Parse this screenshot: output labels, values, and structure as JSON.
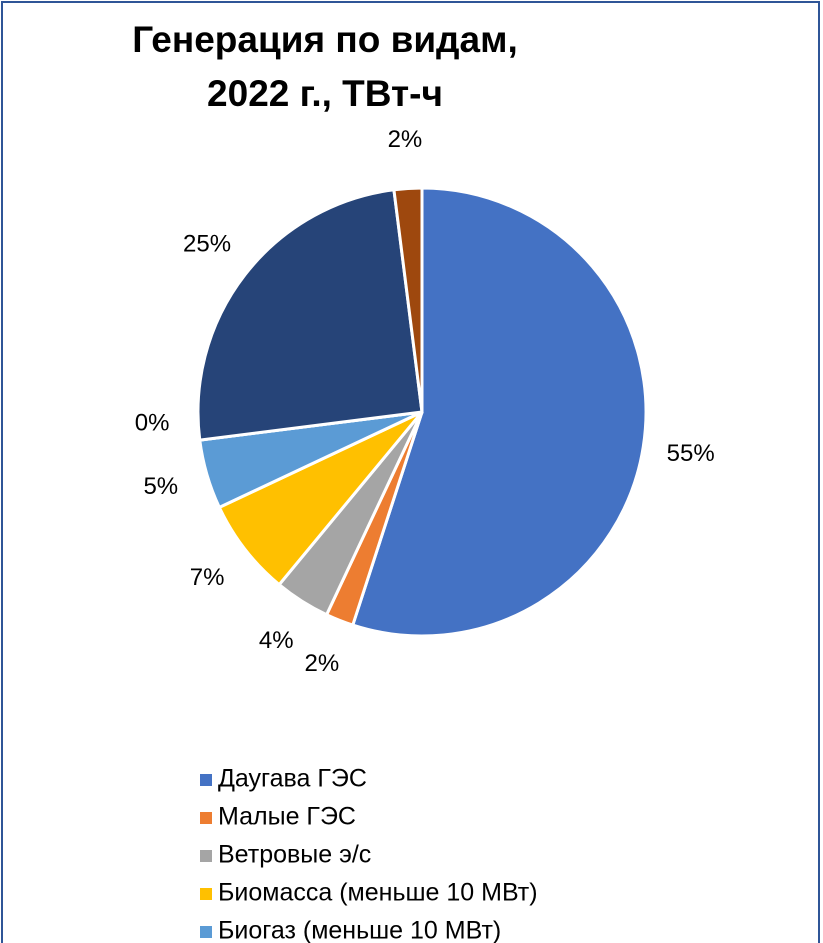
{
  "chart_data": {
    "type": "pie",
    "title": [
      "Генерация по видам,",
      "2022 г., ТВт-ч"
    ],
    "categories": [
      "Даугава ГЭС",
      "Малые ГЭС",
      "Ветровые э/с",
      "Биомасса (меньше 10 МВт)",
      "Биогаз (меньше 10 МВт)",
      null,
      null,
      null
    ],
    "values": [
      55,
      2,
      4,
      7,
      5,
      0,
      25,
      2
    ],
    "value_labels": [
      "55%",
      "2%",
      "4%",
      "7%",
      "5%",
      "0%",
      "25%",
      "2%"
    ],
    "colors": [
      "#4472c4",
      "#ed7d31",
      "#a5a5a5",
      "#ffc000",
      "#5b9bd5",
      "#70ad47",
      "#264478",
      "#9e480e"
    ],
    "legend": "bottom"
  }
}
